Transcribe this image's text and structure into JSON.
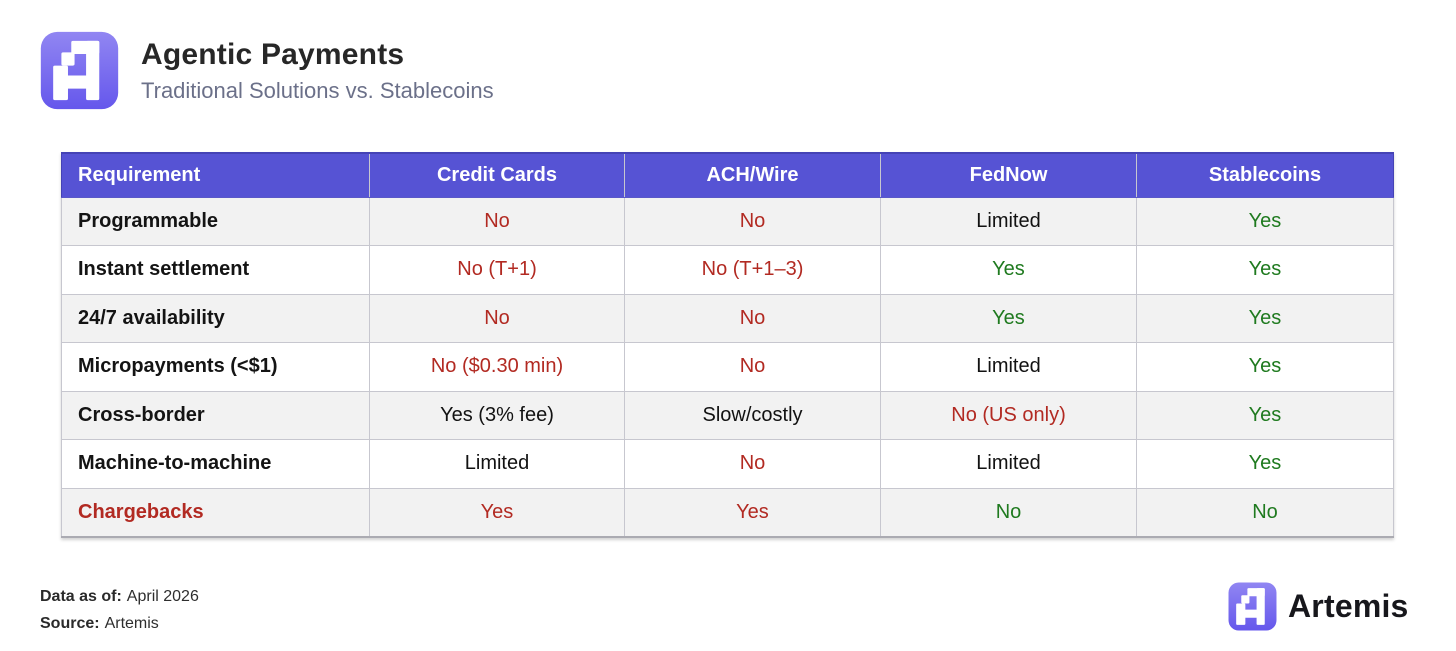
{
  "page": {
    "title": "Agentic Payments",
    "subtitle": "Traditional Solutions vs. Stablecoins"
  },
  "colors": {
    "header_purple": "#5653d4",
    "logo_gradient_top": "#9186f2",
    "logo_gradient_bottom": "#6557ec",
    "negative_red": "#b22a22",
    "positive_green": "#1f7a1f",
    "neutral_text": "#121212",
    "row_stripe": "#f2f2f2",
    "subtitle_gray": "#6b7089"
  },
  "chart_data": {
    "type": "table",
    "title": "Agentic Payments",
    "subtitle": "Traditional Solutions vs. Stablecoins",
    "columns": [
      "Requirement",
      "Credit Cards",
      "ACH/Wire",
      "FedNow",
      "Stablecoins"
    ],
    "rows": [
      {
        "label": "Programmable",
        "label_tone": "default",
        "cells": [
          {
            "text": "No",
            "tone": "bad"
          },
          {
            "text": "No",
            "tone": "bad"
          },
          {
            "text": "Limited",
            "tone": "neutral"
          },
          {
            "text": "Yes",
            "tone": "good"
          }
        ]
      },
      {
        "label": "Instant settlement",
        "label_tone": "default",
        "cells": [
          {
            "text": "No (T+1)",
            "tone": "bad"
          },
          {
            "text": "No (T+1–3)",
            "tone": "bad"
          },
          {
            "text": "Yes",
            "tone": "good"
          },
          {
            "text": "Yes",
            "tone": "good"
          }
        ]
      },
      {
        "label": "24/7 availability",
        "label_tone": "default",
        "cells": [
          {
            "text": "No",
            "tone": "bad"
          },
          {
            "text": "No",
            "tone": "bad"
          },
          {
            "text": "Yes",
            "tone": "good"
          },
          {
            "text": "Yes",
            "tone": "good"
          }
        ]
      },
      {
        "label": "Micropayments (<$1)",
        "label_tone": "default",
        "cells": [
          {
            "text": "No ($0.30 min)",
            "tone": "bad"
          },
          {
            "text": "No",
            "tone": "bad"
          },
          {
            "text": "Limited",
            "tone": "neutral"
          },
          {
            "text": "Yes",
            "tone": "good"
          }
        ]
      },
      {
        "label": "Cross-border",
        "label_tone": "default",
        "cells": [
          {
            "text": "Yes (3% fee)",
            "tone": "neutral"
          },
          {
            "text": "Slow/costly",
            "tone": "neutral"
          },
          {
            "text": "No (US only)",
            "tone": "bad"
          },
          {
            "text": "Yes",
            "tone": "good"
          }
        ]
      },
      {
        "label": "Machine-to-machine",
        "label_tone": "default",
        "cells": [
          {
            "text": "Limited",
            "tone": "neutral"
          },
          {
            "text": "No",
            "tone": "bad"
          },
          {
            "text": "Limited",
            "tone": "neutral"
          },
          {
            "text": "Yes",
            "tone": "good"
          }
        ]
      },
      {
        "label": "Chargebacks",
        "label_tone": "bad",
        "cells": [
          {
            "text": "Yes",
            "tone": "bad"
          },
          {
            "text": "Yes",
            "tone": "bad"
          },
          {
            "text": "No",
            "tone": "good"
          },
          {
            "text": "No",
            "tone": "good"
          }
        ]
      }
    ]
  },
  "footer": {
    "data_as_of_label": "Data as of:",
    "data_as_of_value": "April 2026",
    "source_label": "Source:",
    "source_value": "Artemis",
    "brand_name": "Artemis"
  }
}
